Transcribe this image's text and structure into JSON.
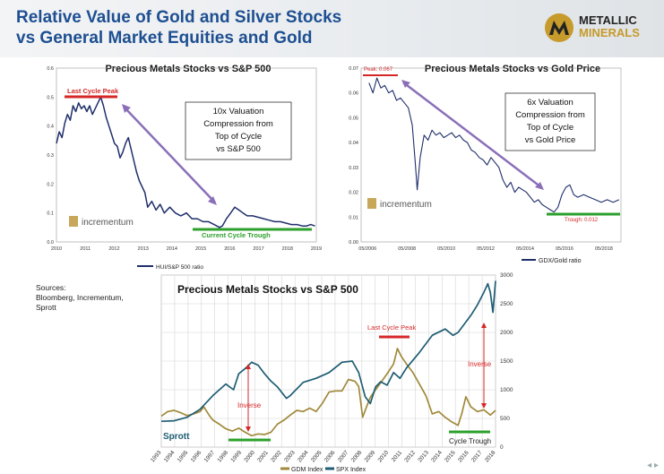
{
  "header": {
    "title_line1": "Relative Value of Gold and Silver Stocks",
    "title_line2": "vs General Market Equities and Gold",
    "logo_line1": "METALLIC",
    "logo_line2": "MINERALS"
  },
  "sources": [
    "Sources:",
    "Bloomberg, Incrementum,",
    "Sprott"
  ],
  "chart_data": [
    {
      "type": "line",
      "title": "Precious Metals Stocks vs S&P 500",
      "legend": [
        "HUI/S&P 500 ratio"
      ],
      "brand": "incrementum",
      "xlim": [
        2010,
        2019.4
      ],
      "ylim": [
        0,
        0.6
      ],
      "x_ticks": [
        "2010",
        "2011",
        "2012",
        "2013",
        "2014",
        "2015",
        "2016",
        "2017",
        "2018",
        "2019"
      ],
      "y_ticks": [
        "0.0",
        "0.1",
        "0.2",
        "0.3",
        "0.4",
        "0.5",
        "0.6"
      ],
      "series": [
        {
          "name": "HUI/S&P 500 ratio",
          "color": "#1f2f6b",
          "x": [
            2010.0,
            2010.1,
            2010.2,
            2010.3,
            2010.4,
            2010.5,
            2010.6,
            2010.7,
            2010.8,
            2010.9,
            2011.0,
            2011.1,
            2011.2,
            2011.3,
            2011.4,
            2011.5,
            2011.6,
            2011.7,
            2011.8,
            2011.9,
            2012.0,
            2012.1,
            2012.2,
            2012.3,
            2012.4,
            2012.5,
            2012.6,
            2012.7,
            2012.8,
            2012.9,
            2013.0,
            2013.2,
            2013.3,
            2013.45,
            2013.6,
            2013.75,
            2013.9,
            2014.1,
            2014.3,
            2014.5,
            2014.7,
            2014.9,
            2015.1,
            2015.3,
            2015.5,
            2015.7,
            2015.9,
            2016.0,
            2016.15,
            2016.3,
            2016.45,
            2016.6,
            2016.75,
            2016.9,
            2017.1,
            2017.3,
            2017.5,
            2017.7,
            2017.9,
            2018.1,
            2018.3,
            2018.5,
            2018.7,
            2018.9,
            2019.05,
            2019.2,
            2019.35
          ],
          "values": [
            0.34,
            0.38,
            0.36,
            0.41,
            0.44,
            0.42,
            0.47,
            0.45,
            0.48,
            0.46,
            0.47,
            0.45,
            0.47,
            0.44,
            0.46,
            0.48,
            0.5,
            0.47,
            0.43,
            0.4,
            0.37,
            0.34,
            0.33,
            0.29,
            0.31,
            0.34,
            0.36,
            0.32,
            0.28,
            0.24,
            0.21,
            0.17,
            0.12,
            0.14,
            0.11,
            0.13,
            0.1,
            0.12,
            0.1,
            0.09,
            0.1,
            0.08,
            0.08,
            0.07,
            0.07,
            0.06,
            0.05,
            0.055,
            0.08,
            0.1,
            0.12,
            0.11,
            0.1,
            0.09,
            0.09,
            0.085,
            0.08,
            0.075,
            0.07,
            0.07,
            0.065,
            0.06,
            0.06,
            0.055,
            0.055,
            0.06,
            0.055
          ]
        }
      ],
      "annotations": [
        {
          "text": "Last Cycle Peak",
          "color": "#d62728"
        },
        {
          "text": "10x Valuation",
          "box": true
        },
        {
          "text": "Compression from",
          "box": true
        },
        {
          "text": "Top of Cycle",
          "box": true
        },
        {
          "text": "vs S&P 500",
          "box": true
        },
        {
          "text": "Current Cycle Trough",
          "color": "#2ca02c"
        }
      ]
    },
    {
      "type": "line",
      "title": "Precious Metals Stocks vs Gold Price",
      "legend": [
        "GDX/Gold ratio"
      ],
      "brand": "incrementum",
      "xlim": [
        2006,
        2019.2
      ],
      "ylim": [
        0,
        0.07
      ],
      "x_ticks": [
        "05/2006",
        "05/2008",
        "05/2010",
        "05/2012",
        "05/2014",
        "05/2016",
        "05/2018"
      ],
      "y_ticks": [
        "0.00",
        "0.01",
        "0.02",
        "0.03",
        "0.04",
        "0.05",
        "0.06",
        "0.07"
      ],
      "series": [
        {
          "name": "GDX/Gold ratio",
          "color": "#1f2f6b",
          "x": [
            2006.4,
            2006.6,
            2006.8,
            2007.0,
            2007.2,
            2007.4,
            2007.6,
            2007.8,
            2008.0,
            2008.2,
            2008.4,
            2008.6,
            2008.75,
            2008.85,
            2009.0,
            2009.2,
            2009.4,
            2009.6,
            2009.8,
            2010.0,
            2010.2,
            2010.4,
            2010.6,
            2010.8,
            2011.0,
            2011.2,
            2011.4,
            2011.6,
            2011.8,
            2012.0,
            2012.2,
            2012.4,
            2012.6,
            2012.8,
            2013.0,
            2013.2,
            2013.4,
            2013.6,
            2013.8,
            2014.0,
            2014.2,
            2014.4,
            2014.6,
            2014.8,
            2015.0,
            2015.2,
            2015.4,
            2015.6,
            2015.8,
            2016.0,
            2016.2,
            2016.4,
            2016.6,
            2016.8,
            2017.0,
            2017.3,
            2017.6,
            2017.9,
            2018.2,
            2018.5,
            2018.8,
            2019.1
          ],
          "values": [
            0.064,
            0.06,
            0.066,
            0.062,
            0.063,
            0.06,
            0.061,
            0.057,
            0.058,
            0.056,
            0.054,
            0.047,
            0.032,
            0.021,
            0.034,
            0.043,
            0.041,
            0.045,
            0.043,
            0.044,
            0.042,
            0.043,
            0.044,
            0.042,
            0.043,
            0.041,
            0.04,
            0.037,
            0.036,
            0.034,
            0.033,
            0.031,
            0.034,
            0.032,
            0.03,
            0.025,
            0.022,
            0.024,
            0.02,
            0.022,
            0.021,
            0.02,
            0.018,
            0.016,
            0.017,
            0.015,
            0.014,
            0.013,
            0.012,
            0.014,
            0.019,
            0.022,
            0.023,
            0.019,
            0.018,
            0.019,
            0.018,
            0.017,
            0.016,
            0.017,
            0.016,
            0.017
          ]
        }
      ],
      "annotations": [
        {
          "text": "Peak: 0.067",
          "color": "#d62728"
        },
        {
          "text": "6x Valuation",
          "box": true
        },
        {
          "text": "Compression from",
          "box": true
        },
        {
          "text": "Top of Cycle",
          "box": true
        },
        {
          "text": "vs Gold Price",
          "box": true
        },
        {
          "text": "Trough: 0.012",
          "color": "#d62728"
        }
      ]
    },
    {
      "type": "line",
      "title": "Precious Metals Stocks vs S&P 500",
      "brand": "Sprott",
      "xlim": [
        1993,
        2018.9
      ],
      "ylim": [
        0,
        3000
      ],
      "x_ticks": [
        "1993",
        "1994",
        "1995",
        "1996",
        "1997",
        "1998",
        "1999",
        "2000",
        "2001",
        "2002",
        "2003",
        "2004",
        "2005",
        "2006",
        "2007",
        "2008",
        "2009",
        "2010",
        "2011",
        "2012",
        "2013",
        "2014",
        "2015",
        "2016",
        "2017",
        "2018"
      ],
      "y_ticks": [
        "0",
        "500",
        "1000",
        "1500",
        "2000",
        "2500",
        "3000"
      ],
      "series": [
        {
          "name": "GDM Index",
          "color": "#a0893a",
          "x": [
            1993,
            1993.5,
            1994,
            1994.5,
            1995,
            1995.5,
            1996,
            1996.3,
            1996.7,
            1997,
            1997.5,
            1998,
            1998.5,
            1999,
            1999.5,
            2000,
            2000.5,
            2001,
            2001.5,
            2002,
            2002.5,
            2003,
            2003.5,
            2004,
            2004.5,
            2005,
            2005.5,
            2006,
            2006.5,
            2007,
            2007.5,
            2008,
            2008.3,
            2008.6,
            2008.9,
            2009.2,
            2009.6,
            2010,
            2010.5,
            2011,
            2011.3,
            2011.6,
            2012,
            2012.5,
            2013,
            2013.5,
            2014,
            2014.5,
            2015,
            2015.5,
            2016,
            2016.3,
            2016.6,
            2017,
            2017.5,
            2018,
            2018.5,
            2018.9
          ],
          "values": [
            540,
            620,
            640,
            600,
            550,
            580,
            620,
            700,
            560,
            470,
            400,
            320,
            280,
            330,
            260,
            200,
            230,
            220,
            260,
            400,
            470,
            560,
            640,
            620,
            680,
            620,
            770,
            960,
            980,
            980,
            1180,
            1150,
            1060,
            520,
            700,
            870,
            1000,
            1120,
            1280,
            1450,
            1720,
            1580,
            1450,
            1300,
            1100,
            900,
            580,
            620,
            520,
            440,
            380,
            600,
            880,
            700,
            620,
            650,
            560,
            640
          ]
        },
        {
          "name": "SPX Index",
          "color": "#1e5d73",
          "x": [
            1993,
            1994,
            1995,
            1996,
            1997,
            1998,
            1998.6,
            1999,
            1999.5,
            2000,
            2000.5,
            2001,
            2001.5,
            2002,
            2002.7,
            2003,
            2004,
            2005,
            2006,
            2007,
            2007.8,
            2008.3,
            2008.8,
            2009.2,
            2009.6,
            2010,
            2010.5,
            2011,
            2011.5,
            2012,
            2013,
            2014,
            2015,
            2015.6,
            2016,
            2016.5,
            2017,
            2017.5,
            2018,
            2018.3,
            2018.5,
            2018.7,
            2018.9
          ],
          "values": [
            450,
            460,
            520,
            660,
            900,
            1100,
            1000,
            1280,
            1370,
            1480,
            1430,
            1280,
            1150,
            1050,
            850,
            900,
            1130,
            1200,
            1300,
            1480,
            1500,
            1300,
            880,
            760,
            1050,
            1140,
            1080,
            1300,
            1200,
            1380,
            1650,
            1950,
            2060,
            1950,
            2000,
            2150,
            2300,
            2480,
            2700,
            2850,
            2700,
            2350,
            2900
          ]
        }
      ],
      "annotations": [
        {
          "text": "Last Cycle Peak",
          "color": "#d62728"
        },
        {
          "text": "Inverse",
          "color": "#d62728"
        },
        {
          "text": "Inverse",
          "color": "#d62728"
        },
        {
          "text": "Cycle Trough",
          "color": "#2ca02c"
        }
      ]
    }
  ]
}
